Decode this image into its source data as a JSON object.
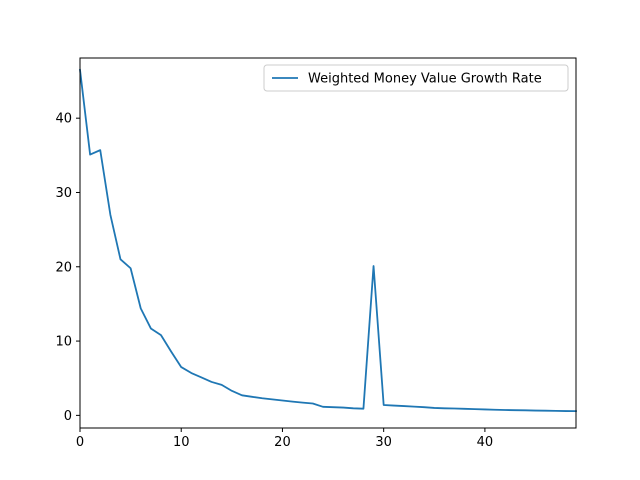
{
  "chart_data": {
    "type": "line",
    "title": "",
    "xlabel": "",
    "ylabel": "",
    "xlim": [
      0,
      49
    ],
    "ylim": [
      -1.7,
      48.1
    ],
    "xticks": [
      0,
      10,
      20,
      30,
      40
    ],
    "yticks": [
      0,
      10,
      20,
      30,
      40
    ],
    "grid": false,
    "legend_position": "top-right",
    "series": [
      {
        "name": "Weighted Money Value Growth Rate",
        "color": "#1f77b4",
        "x": [
          0,
          1,
          2,
          3,
          4,
          5,
          6,
          7,
          8,
          9,
          10,
          11,
          12,
          13,
          14,
          15,
          16,
          17,
          18,
          19,
          20,
          21,
          22,
          23,
          24,
          25,
          26,
          27,
          28,
          29,
          30,
          31,
          32,
          33,
          34,
          35,
          36,
          37,
          38,
          39,
          40,
          41,
          42,
          43,
          44,
          45,
          46,
          47,
          48,
          49
        ],
        "y": [
          46.5,
          35.1,
          35.7,
          27.0,
          21.0,
          19.8,
          14.4,
          11.7,
          10.8,
          8.6,
          6.5,
          5.7,
          5.1,
          4.5,
          4.1,
          3.3,
          2.7,
          2.5,
          2.3,
          2.15,
          2.0,
          1.85,
          1.72,
          1.6,
          1.15,
          1.1,
          1.05,
          0.95,
          0.9,
          20.1,
          1.4,
          1.32,
          1.25,
          1.18,
          1.1,
          1.0,
          0.95,
          0.92,
          0.88,
          0.84,
          0.8,
          0.76,
          0.72,
          0.7,
          0.68,
          0.65,
          0.63,
          0.6,
          0.58,
          0.57
        ]
      }
    ]
  }
}
